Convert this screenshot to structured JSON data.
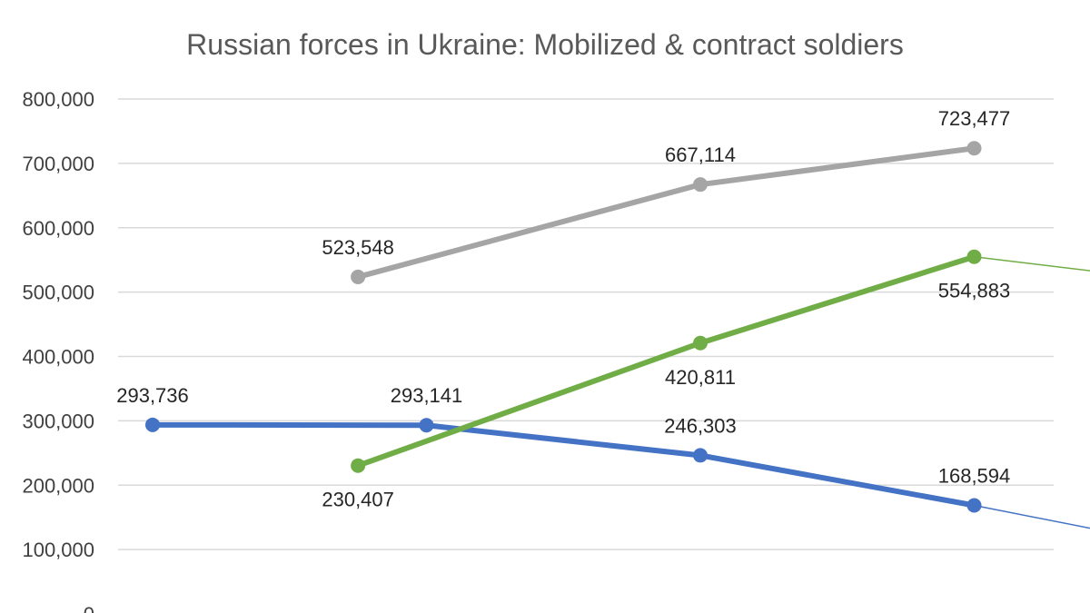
{
  "chart_data": {
    "type": "line",
    "title": "Russian forces in Ukraine: Mobilized & contract soldiers",
    "xlabel": "",
    "ylabel": "",
    "ylim": [
      0,
      800000
    ],
    "yticks": [
      {
        "value": 0,
        "label": "0"
      },
      {
        "value": 100000,
        "label": "100,000"
      },
      {
        "value": 200000,
        "label": "200,000"
      },
      {
        "value": 300000,
        "label": "300,000"
      },
      {
        "value": 400000,
        "label": "400,000"
      },
      {
        "value": 500000,
        "label": "500,000"
      },
      {
        "value": 600000,
        "label": "600,000"
      },
      {
        "value": 700000,
        "label": "700,000"
      },
      {
        "value": 800000,
        "label": "800,000"
      }
    ],
    "grid": true,
    "legend": "none",
    "x_index_range": [
      0,
      4
    ],
    "series": [
      {
        "key": "blue",
        "color": "#4472c4",
        "points": [
          {
            "x": 0,
            "y": 293736,
            "label": "293,736",
            "label_pos": "above"
          },
          {
            "x": 1,
            "y": 293141,
            "label": "293,141",
            "label_pos": "above"
          },
          {
            "x": 2,
            "y": 246303,
            "label": "246,303",
            "label_pos": "above"
          },
          {
            "x": 3,
            "y": 168594,
            "label": "168,594",
            "label_pos": "above"
          }
        ],
        "projection": {
          "x": 3.58,
          "y": 120000
        }
      },
      {
        "key": "green",
        "color": "#70ad47",
        "points": [
          {
            "x": 0.75,
            "y": 230407,
            "label": "230,407",
            "label_pos": "below"
          },
          {
            "x": 2,
            "y": 420811,
            "label": "420,811",
            "label_pos": "below"
          },
          {
            "x": 3,
            "y": 554883,
            "label": "554,883",
            "label_pos": "below"
          }
        ],
        "projection": {
          "x": 3.58,
          "y": 525000
        }
      },
      {
        "key": "gray",
        "color": "#a5a5a5",
        "points": [
          {
            "x": 0.75,
            "y": 523548,
            "label": "523,548",
            "label_pos": "above"
          },
          {
            "x": 2,
            "y": 667114,
            "label": "667,114",
            "label_pos": "above"
          },
          {
            "x": 3,
            "y": 723477,
            "label": "723,477",
            "label_pos": "above"
          }
        ]
      }
    ]
  }
}
